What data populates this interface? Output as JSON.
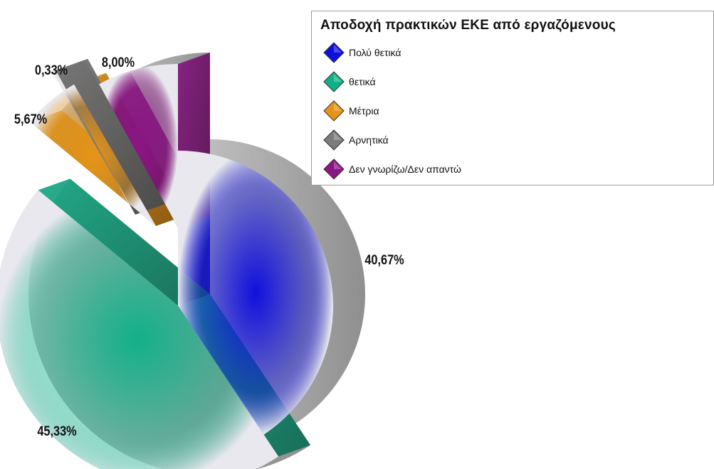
{
  "chart_data": {
    "type": "pie",
    "title": "Αποδοχή πρακτικών ΕΚΕ από εργαζόμενους",
    "legend_position": "top-right",
    "exploded": true,
    "style": "3d",
    "slices": [
      {
        "name": "Πολύ θετικά",
        "value": 40.67,
        "label": "40,67%",
        "color": "#1010dd"
      },
      {
        "name": "θετικά",
        "value": 45.33,
        "label": "45,33%",
        "color": "#12b089"
      },
      {
        "name": "Μέτρια",
        "value": 5.67,
        "label": "5,67%",
        "color": "#e59417"
      },
      {
        "name": "Αρνητικά",
        "value": 0.33,
        "label": "0,33%",
        "color": "#7c7c7c"
      },
      {
        "name": "Δεν γνωρίζω/Δεν απαντώ",
        "value": 8.0,
        "label": "8,00%",
        "color": "#8c1585"
      }
    ]
  }
}
